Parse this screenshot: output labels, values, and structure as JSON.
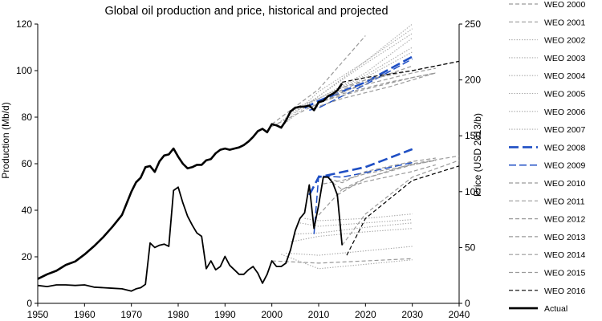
{
  "chart_data": {
    "type": "line",
    "title": "Global oil production and price, historical and projected",
    "xlabel": "",
    "ylabel_left": "Production (Mb/d)",
    "ylabel_right": "Price (USD 2013/b)",
    "xlim": [
      1950,
      2040
    ],
    "ylim_left": [
      0,
      120
    ],
    "ylim_right": [
      0,
      250
    ],
    "x_ticks": [
      "1950",
      "1960",
      "1970",
      "1980",
      "1990",
      "2000",
      "2010",
      "2020",
      "2030",
      "2040"
    ],
    "y_left_ticks": [
      "0",
      "20",
      "40",
      "60",
      "80",
      "100",
      "120"
    ],
    "y_right_ticks": [
      "0",
      "50",
      "100",
      "150",
      "200",
      "250"
    ],
    "colors": {
      "grey": "#9a9a9a",
      "dotted": "#a8a8a8",
      "blue": "#1f4fc4",
      "black": "#000000"
    },
    "legend": [
      {
        "name": "WEO 2000",
        "style": "dash",
        "color": "#9a9a9a"
      },
      {
        "name": "WEO 2001",
        "style": "dash",
        "color": "#9a9a9a"
      },
      {
        "name": "WEO 2002",
        "style": "dot",
        "color": "#a8a8a8"
      },
      {
        "name": "WEO 2003",
        "style": "dot",
        "color": "#a8a8a8"
      },
      {
        "name": "WEO 2004",
        "style": "dot",
        "color": "#a8a8a8"
      },
      {
        "name": "WEO 2005",
        "style": "dot",
        "color": "#a8a8a8"
      },
      {
        "name": "WEO 2006",
        "style": "dot",
        "color": "#a8a8a8"
      },
      {
        "name": "WEO 2007",
        "style": "dot",
        "color": "#a8a8a8"
      },
      {
        "name": "WEO 2008",
        "style": "longdash-thick",
        "color": "#1f4fc4"
      },
      {
        "name": "WEO 2009",
        "style": "longdash",
        "color": "#1f4fc4"
      },
      {
        "name": "WEO 2010",
        "style": "dash",
        "color": "#9a9a9a"
      },
      {
        "name": "WEO 2011",
        "style": "dash",
        "color": "#9a9a9a"
      },
      {
        "name": "WEO 2012",
        "style": "dash",
        "color": "#9a9a9a"
      },
      {
        "name": "WEO 2013",
        "style": "dash",
        "color": "#9a9a9a"
      },
      {
        "name": "WEO 2014",
        "style": "dash",
        "color": "#9a9a9a"
      },
      {
        "name": "WEO 2015",
        "style": "dash",
        "color": "#9a9a9a"
      },
      {
        "name": "WEO 2016",
        "style": "dash",
        "color": "#000000"
      },
      {
        "name": "Actual",
        "style": "solid-thick",
        "color": "#000000"
      }
    ],
    "series": [
      {
        "name": "Actual production",
        "axis": "left",
        "style": "solid-thick",
        "color": "#000000",
        "x": [
          1950,
          1952,
          1954,
          1956,
          1958,
          1960,
          1962,
          1964,
          1966,
          1968,
          1970,
          1971,
          1972,
          1973,
          1974,
          1975,
          1976,
          1977,
          1978,
          1979,
          1980,
          1981,
          1982,
          1983,
          1984,
          1985,
          1986,
          1987,
          1988,
          1989,
          1990,
          1991,
          1992,
          1993,
          1994,
          1995,
          1996,
          1997,
          1998,
          1999,
          2000,
          2001,
          2002,
          2003,
          2004,
          2005,
          2006,
          2007,
          2008,
          2009,
          2010,
          2011,
          2012,
          2013,
          2014,
          2015
        ],
        "y": [
          10.5,
          12.5,
          14,
          16.5,
          18,
          21,
          24.5,
          28.5,
          33,
          38,
          48,
          52,
          54,
          58.5,
          59,
          56.5,
          61,
          63.5,
          64,
          66.5,
          63,
          60,
          58,
          58.5,
          59.5,
          59.5,
          61.5,
          62,
          64.5,
          66,
          66.5,
          66,
          66.5,
          67,
          68,
          69.5,
          71.5,
          74,
          75,
          73.5,
          77,
          76.5,
          75.5,
          78.5,
          82.5,
          84,
          84.5,
          84.5,
          85,
          83,
          86.5,
          87,
          89,
          90,
          91.5,
          94.5
        ]
      },
      {
        "name": "Actual price",
        "axis": "right",
        "style": "solid-medium",
        "color": "#000000",
        "x": [
          1950,
          1952,
          1954,
          1956,
          1958,
          1960,
          1962,
          1964,
          1966,
          1968,
          1970,
          1971,
          1972,
          1973,
          1974,
          1975,
          1976,
          1977,
          1978,
          1979,
          1980,
          1981,
          1982,
          1983,
          1984,
          1985,
          1986,
          1987,
          1988,
          1989,
          1990,
          1991,
          1992,
          1993,
          1994,
          1995,
          1996,
          1997,
          1998,
          1999,
          2000,
          2001,
          2002,
          2003,
          2004,
          2005,
          2006,
          2007,
          2008,
          2009,
          2010,
          2011,
          2012,
          2013,
          2014,
          2015
        ],
        "y": [
          16,
          15,
          16.5,
          16.5,
          16,
          16.5,
          14.5,
          14,
          13.5,
          13,
          11,
          13,
          14,
          17,
          54,
          50,
          52,
          53,
          51,
          101,
          104,
          90,
          78,
          70,
          63,
          60,
          31,
          38,
          30,
          33,
          42,
          34,
          30,
          26,
          26,
          30,
          33,
          27,
          18,
          26,
          38,
          33,
          33,
          36,
          48,
          65,
          76,
          81,
          106,
          67,
          88,
          113,
          113,
          108,
          97,
          52
        ]
      },
      {
        "name": "WEO 2000",
        "axis": "left",
        "style": "dash",
        "color": "#9a9a9a",
        "x": [
          2000,
          2010,
          2020,
          2030
        ],
        "y": [
          76,
          86,
          95,
          102
        ]
      },
      {
        "name": "WEO 2001",
        "axis": "left",
        "style": "dash",
        "color": "#9a9a9a",
        "x": [
          2000,
          2010,
          2020
        ],
        "y": [
          77,
          92,
          115
        ]
      },
      {
        "name": "WEO 2002",
        "axis": "left",
        "style": "dot",
        "color": "#a8a8a8",
        "x": [
          2001,
          2010,
          2020,
          2030
        ],
        "y": [
          77,
          89,
          104,
          120
        ]
      },
      {
        "name": "WEO 2003",
        "axis": "left",
        "style": "dot",
        "color": "#a8a8a8",
        "x": [
          2002,
          2010,
          2020,
          2030
        ],
        "y": [
          76,
          89,
          103,
          116
        ]
      },
      {
        "name": "WEO 2004",
        "axis": "left",
        "style": "dot",
        "color": "#a8a8a8",
        "x": [
          2003,
          2010,
          2020,
          2030
        ],
        "y": [
          78,
          91,
          104,
          118
        ]
      },
      {
        "name": "WEO 2005",
        "axis": "left",
        "style": "dot",
        "color": "#a8a8a8",
        "x": [
          2004,
          2010,
          2020,
          2030
        ],
        "y": [
          82,
          88,
          99,
          114
        ]
      },
      {
        "name": "WEO 2006",
        "axis": "left",
        "style": "dot",
        "color": "#a8a8a8",
        "x": [
          2005,
          2010,
          2020,
          2030
        ],
        "y": [
          84,
          88,
          97,
          108
        ]
      },
      {
        "name": "WEO 2007",
        "axis": "left",
        "style": "dot",
        "color": "#a8a8a8",
        "x": [
          2006,
          2010,
          2020,
          2030
        ],
        "y": [
          84,
          88,
          98,
          110
        ]
      },
      {
        "name": "WEO 2008",
        "axis": "left",
        "style": "longdash-thick",
        "color": "#1f4fc4",
        "x": [
          2007,
          2010,
          2020,
          2030
        ],
        "y": [
          84,
          87,
          95,
          106
        ]
      },
      {
        "name": "WEO 2009",
        "axis": "left",
        "style": "longdash",
        "color": "#1f4fc4",
        "x": [
          2008,
          2010,
          2020,
          2030
        ],
        "y": [
          83,
          84,
          94,
          105
        ]
      },
      {
        "name": "WEO 2010",
        "axis": "left",
        "style": "dash",
        "color": "#9a9a9a",
        "x": [
          2009,
          2015,
          2025,
          2035
        ],
        "y": [
          84,
          88,
          93,
          99
        ]
      },
      {
        "name": "WEO 2011",
        "axis": "left",
        "style": "dash",
        "color": "#9a9a9a",
        "x": [
          2010,
          2015,
          2025,
          2035
        ],
        "y": [
          86,
          90,
          95,
          99
        ]
      },
      {
        "name": "WEO 2012",
        "axis": "left",
        "style": "dash",
        "color": "#9a9a9a",
        "x": [
          2011,
          2020,
          2030,
          2035
        ],
        "y": [
          87,
          92,
          97,
          99
        ]
      },
      {
        "name": "WEO 2013",
        "axis": "left",
        "style": "dash",
        "color": "#9a9a9a",
        "x": [
          2012,
          2020,
          2030,
          2035
        ],
        "y": [
          89,
          94,
          99,
          101
        ]
      },
      {
        "name": "WEO 2014",
        "axis": "left",
        "style": "dash",
        "color": "#9a9a9a",
        "x": [
          2013,
          2020,
          2030,
          2040
        ],
        "y": [
          90,
          96,
          100,
          104
        ]
      },
      {
        "name": "WEO 2015",
        "axis": "left",
        "style": "dash",
        "color": "#9a9a9a",
        "x": [
          2014,
          2020,
          2030,
          2040
        ],
        "y": [
          92,
          96,
          100,
          104
        ]
      },
      {
        "name": "WEO 2016",
        "axis": "left",
        "style": "dash",
        "color": "#000000",
        "x": [
          2015,
          2020,
          2030,
          2040
        ],
        "y": [
          95,
          97,
          100,
          104
        ]
      },
      {
        "name": "WEO 2000 price",
        "axis": "right",
        "style": "dash",
        "color": "#9a9a9a",
        "x": [
          2000,
          2010,
          2020,
          2030
        ],
        "y": [
          38,
          36,
          38,
          40
        ]
      },
      {
        "name": "WEO 2002 price",
        "axis": "right",
        "style": "dot",
        "color": "#a8a8a8",
        "x": [
          2002,
          2010,
          2020,
          2030
        ],
        "y": [
          44,
          31,
          35,
          39
        ]
      },
      {
        "name": "WEO 2003 price",
        "axis": "right",
        "style": "dot",
        "color": "#a8a8a8",
        "x": [
          2003,
          2010,
          2020,
          2030
        ],
        "y": [
          45,
          43,
          47,
          51
        ]
      },
      {
        "name": "WEO 2004 price",
        "axis": "right",
        "style": "dot",
        "color": "#a8a8a8",
        "x": [
          2004,
          2010,
          2020,
          2030
        ],
        "y": [
          55,
          60,
          64,
          67
        ]
      },
      {
        "name": "WEO 2005 price",
        "axis": "right",
        "style": "dot",
        "color": "#a8a8a8",
        "x": [
          2005,
          2010,
          2020,
          2030
        ],
        "y": [
          62,
          63,
          68,
          72
        ]
      },
      {
        "name": "WEO 2006 price",
        "axis": "right",
        "style": "dot",
        "color": "#a8a8a8",
        "x": [
          2006,
          2010,
          2020,
          2030
        ],
        "y": [
          72,
          69,
          72,
          75
        ]
      },
      {
        "name": "WEO 2007 price",
        "axis": "right",
        "style": "dot",
        "color": "#a8a8a8",
        "x": [
          2007,
          2010,
          2020,
          2030
        ],
        "y": [
          76,
          74,
          76,
          80
        ]
      },
      {
        "name": "WEO 2008 price",
        "axis": "right",
        "style": "longdash-thick",
        "color": "#1f4fc4",
        "x": [
          2008,
          2010,
          2020,
          2030
        ],
        "y": [
          97,
          113,
          122,
          138
        ]
      },
      {
        "name": "WEO 2009 price",
        "axis": "right",
        "style": "longdash",
        "color": "#1f4fc4",
        "x": [
          2009,
          2010,
          2015,
          2020,
          2030
        ],
        "y": [
          62,
          114,
          113,
          117,
          126
        ]
      },
      {
        "name": "WEO 2010 price",
        "axis": "right",
        "style": "dash",
        "color": "#9a9a9a",
        "x": [
          2010,
          2015,
          2020,
          2030,
          2035
        ],
        "y": [
          79,
          102,
          109,
          118,
          124
        ]
      },
      {
        "name": "WEO 2011 price",
        "axis": "right",
        "style": "dash",
        "color": "#9a9a9a",
        "x": [
          2011,
          2015,
          2020,
          2030,
          2035
        ],
        "y": [
          107,
          110,
          116,
          124,
          128
        ]
      },
      {
        "name": "WEO 2012 price",
        "axis": "right",
        "style": "dash",
        "color": "#9a9a9a",
        "x": [
          2012,
          2015,
          2020,
          2030,
          2035
        ],
        "y": [
          112,
          108,
          118,
          127,
          130
        ]
      },
      {
        "name": "WEO 2013 price",
        "axis": "right",
        "style": "dash",
        "color": "#9a9a9a",
        "x": [
          2013,
          2015,
          2020,
          2030,
          2035
        ],
        "y": [
          108,
          102,
          112,
          124,
          128
        ]
      },
      {
        "name": "WEO 2014 price",
        "axis": "right",
        "style": "dash",
        "color": "#9a9a9a",
        "x": [
          2014,
          2020,
          2030,
          2040
        ],
        "y": [
          97,
          112,
          125,
          132
        ]
      },
      {
        "name": "WEO 2015 price",
        "axis": "right",
        "style": "dash",
        "color": "#9a9a9a",
        "x": [
          2015,
          2020,
          2030,
          2040
        ],
        "y": [
          52,
          80,
          113,
          128
        ]
      },
      {
        "name": "WEO 2016 price",
        "axis": "right",
        "style": "dash",
        "color": "#000000",
        "x": [
          2016,
          2020,
          2030,
          2040
        ],
        "y": [
          43,
          76,
          110,
          123
        ]
      }
    ]
  }
}
